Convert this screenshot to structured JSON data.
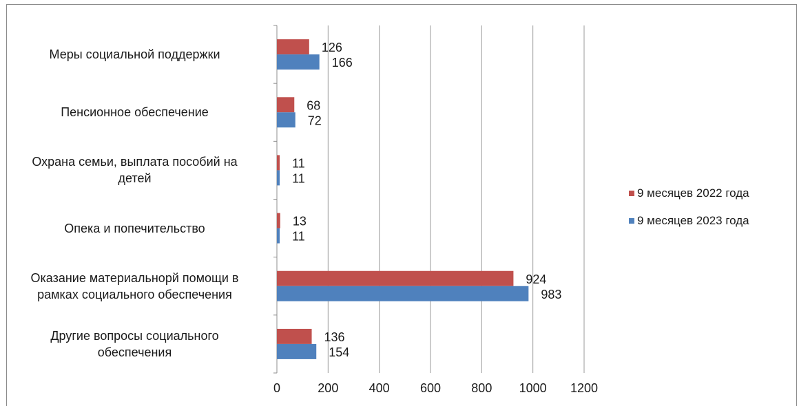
{
  "chart_data": {
    "type": "bar",
    "orientation": "horizontal",
    "categories": [
      "Меры социальной поддержки",
      "Пенсионное обеспечение",
      "Охрана семьи, выплата пособий на детей",
      "Опека и попечительство",
      "Оказание материальнорй помощи в рамках социального обеспечения",
      "Другие вопросы социального обеспечения"
    ],
    "category_lines": [
      [
        "Меры социальной поддержки"
      ],
      [
        "Пенсионное обеспечение"
      ],
      [
        "Охрана семьи, выплата пособий на",
        "детей"
      ],
      [
        "Опека и попечительство"
      ],
      [
        "Оказание материальнорй помощи в",
        "рамках социального обеспечения"
      ],
      [
        "Другие вопросы социального",
        "обеспечения"
      ]
    ],
    "series": [
      {
        "name": "9 месяцев 2022 года",
        "color": "#c0504d",
        "values": [
          126,
          68,
          11,
          13,
          924,
          136
        ]
      },
      {
        "name": "9 месяцев 2023 года",
        "color": "#4f81bd",
        "values": [
          166,
          72,
          11,
          11,
          983,
          154
        ]
      }
    ],
    "xlim": [
      0,
      1200
    ],
    "xticks": [
      0,
      200,
      400,
      600,
      800,
      1000,
      1200
    ],
    "grid": true,
    "legend_position": "right",
    "title": "",
    "xlabel": "",
    "ylabel": ""
  }
}
